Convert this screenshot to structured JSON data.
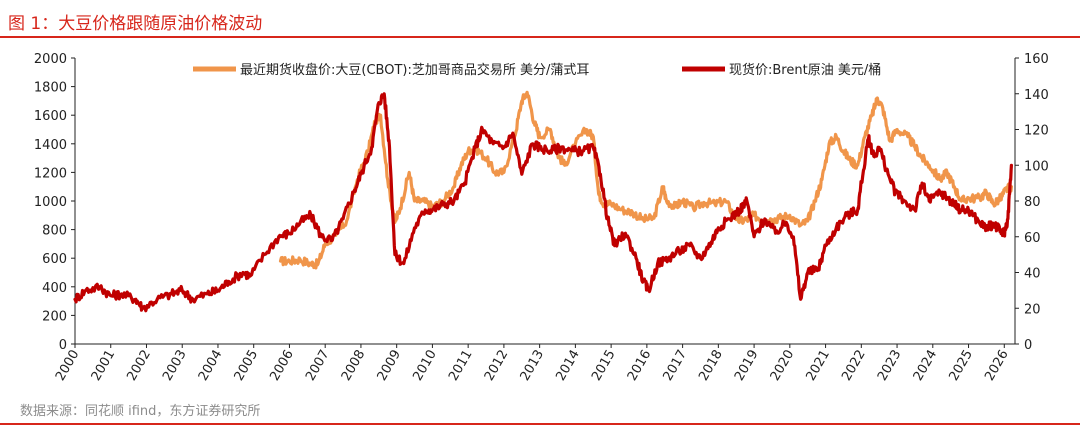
{
  "header": {
    "title": "图 1：大豆价格跟随原油价格波动",
    "source": "数据来源：同花顺 ifind，东方证券研究所"
  },
  "colors": {
    "accent": "#d7261b",
    "soy": "#f0954a",
    "brent": "#c00000"
  },
  "chart_data": {
    "type": "line",
    "title": "图 1：大豆价格跟随原油价格波动",
    "x_ticks": [
      "2000",
      "2001",
      "2002",
      "2003",
      "2004",
      "2005",
      "2006",
      "2007",
      "2008",
      "2009",
      "2010",
      "2011",
      "2012",
      "2013",
      "2014",
      "2015",
      "2016",
      "2017",
      "2018",
      "2019",
      "2020",
      "2021",
      "2022",
      "2023",
      "2024",
      "2025",
      "2026"
    ],
    "xlim": [
      2000,
      2026.3
    ],
    "y_left": {
      "ticks": [
        "0",
        "200",
        "400",
        "600",
        "800",
        "1000",
        "1200",
        "1400",
        "1600",
        "1800",
        "2000"
      ],
      "ylim": [
        0,
        2000
      ]
    },
    "y_right": {
      "ticks": [
        "0",
        "20",
        "40",
        "60",
        "80",
        "100",
        "120",
        "140",
        "160"
      ],
      "ylim": [
        0,
        160
      ]
    },
    "series": [
      {
        "name": "最近期货收盘价:大豆(CBOT):芝加哥商品交易所 美分/蒲式耳",
        "axis": "left",
        "x": [
          2005.75,
          2006.0,
          2006.3,
          2006.6,
          2006.8,
          2007.0,
          2007.3,
          2007.6,
          2007.9,
          2008.2,
          2008.4,
          2008.55,
          2008.75,
          2008.95,
          2009.1,
          2009.35,
          2009.5,
          2009.75,
          2010.0,
          2010.3,
          2010.6,
          2010.8,
          2011.0,
          2011.2,
          2011.5,
          2011.75,
          2012.0,
          2012.3,
          2012.5,
          2012.65,
          2012.85,
          2013.0,
          2013.3,
          2013.5,
          2013.7,
          2014.0,
          2014.3,
          2014.5,
          2014.65,
          2014.8,
          2015.0,
          2015.3,
          2015.6,
          2015.9,
          2016.2,
          2016.45,
          2016.55,
          2016.8,
          2017.0,
          2017.3,
          2017.6,
          2017.9,
          2018.2,
          2018.45,
          2018.6,
          2018.8,
          2019.0,
          2019.3,
          2019.5,
          2019.7,
          2020.0,
          2020.3,
          2020.5,
          2020.7,
          2020.9,
          2021.1,
          2021.3,
          2021.5,
          2021.7,
          2021.9,
          2022.1,
          2022.3,
          2022.45,
          2022.6,
          2022.8,
          2023.0,
          2023.3,
          2023.5,
          2023.7,
          2023.9,
          2024.2,
          2024.4,
          2024.6,
          2024.8,
          2025.0,
          2025.3,
          2025.5,
          2025.7,
          2025.9,
          2026.05,
          2026.2
        ],
        "y": [
          580,
          580,
          590,
          560,
          560,
          700,
          760,
          860,
          1150,
          1350,
          1560,
          1600,
          1150,
          850,
          950,
          1200,
          1000,
          1000,
          960,
          1000,
          1100,
          1250,
          1350,
          1370,
          1300,
          1200,
          1200,
          1450,
          1700,
          1760,
          1550,
          1450,
          1500,
          1330,
          1250,
          1400,
          1500,
          1450,
          1050,
          980,
          980,
          940,
          920,
          870,
          880,
          1100,
          1000,
          960,
          1000,
          950,
          990,
          980,
          1000,
          900,
          860,
          870,
          900,
          860,
          870,
          880,
          900,
          830,
          860,
          1000,
          1150,
          1400,
          1450,
          1350,
          1280,
          1250,
          1450,
          1600,
          1720,
          1650,
          1420,
          1500,
          1450,
          1380,
          1300,
          1250,
          1150,
          1200,
          1100,
          1000,
          1020,
          1020,
          1060,
          980,
          1020,
          1080,
          1100
        ]
      },
      {
        "name": "现货价:Brent原油 美元/桶",
        "axis": "right",
        "x": [
          2000.0,
          2000.3,
          2000.7,
          2001.0,
          2001.3,
          2001.7,
          2001.9,
          2002.3,
          2002.7,
          2003.0,
          2003.3,
          2003.7,
          2004.0,
          2004.3,
          2004.7,
          2004.9,
          2005.3,
          2005.7,
          2006.0,
          2006.3,
          2006.6,
          2006.9,
          2007.2,
          2007.5,
          2007.8,
          2008.0,
          2008.3,
          2008.5,
          2008.65,
          2008.8,
          2008.95,
          2009.2,
          2009.5,
          2009.8,
          2010.0,
          2010.3,
          2010.6,
          2010.9,
          2011.2,
          2011.4,
          2011.7,
          2012.0,
          2012.25,
          2012.5,
          2012.8,
          2013.0,
          2013.3,
          2013.6,
          2013.9,
          2014.2,
          2014.5,
          2014.7,
          2014.9,
          2015.1,
          2015.4,
          2015.7,
          2015.9,
          2016.05,
          2016.3,
          2016.6,
          2016.9,
          2017.2,
          2017.5,
          2017.8,
          2018.0,
          2018.3,
          2018.6,
          2018.8,
          2019.0,
          2019.3,
          2019.6,
          2019.9,
          2020.1,
          2020.3,
          2020.5,
          2020.8,
          2021.0,
          2021.3,
          2021.6,
          2021.9,
          2022.0,
          2022.2,
          2022.35,
          2022.5,
          2022.75,
          2022.95,
          2023.2,
          2023.5,
          2023.7,
          2023.9,
          2024.2,
          2024.4,
          2024.6,
          2024.8,
          2025.0,
          2025.3,
          2025.5,
          2025.7,
          2025.9,
          2026.0,
          2026.1,
          2026.2
        ],
        "y": [
          25,
          30,
          32,
          27,
          28,
          25,
          20,
          25,
          28,
          30,
          25,
          28,
          30,
          35,
          40,
          38,
          50,
          60,
          62,
          68,
          72,
          60,
          58,
          70,
          85,
          95,
          110,
          135,
          140,
          110,
          50,
          45,
          65,
          75,
          75,
          78,
          80,
          90,
          110,
          120,
          112,
          110,
          118,
          95,
          112,
          110,
          108,
          110,
          108,
          108,
          110,
          95,
          70,
          55,
          62,
          48,
          35,
          30,
          45,
          48,
          52,
          55,
          48,
          57,
          65,
          70,
          75,
          80,
          60,
          70,
          62,
          68,
          60,
          25,
          40,
          42,
          55,
          65,
          72,
          75,
          90,
          115,
          105,
          110,
          95,
          85,
          80,
          75,
          90,
          80,
          85,
          82,
          78,
          75,
          75,
          68,
          65,
          67,
          63,
          62,
          70,
          100
        ]
      }
    ]
  }
}
